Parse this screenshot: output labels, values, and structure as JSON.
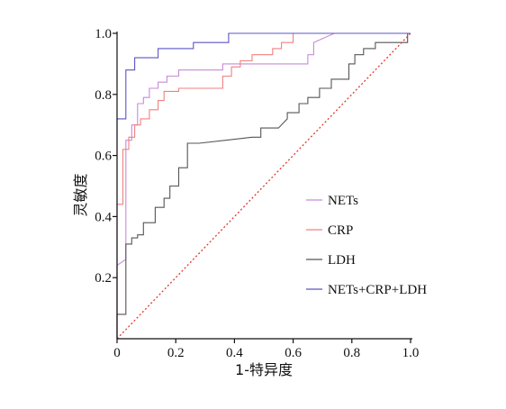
{
  "chart_data": {
    "type": "line",
    "title": "",
    "xlabel": "1-特异度",
    "ylabel": "灵敏度",
    "xlim": [
      0,
      1.0
    ],
    "ylim": [
      0,
      1.0
    ],
    "xticks": [
      "0",
      "0.2",
      "0.4",
      "0.6",
      "0.8",
      "1.0"
    ],
    "yticks": [
      "0.2",
      "0.4",
      "0.6",
      "0.8",
      "1.0"
    ],
    "grid": false,
    "legend": "right",
    "series": [
      {
        "name": "NETs",
        "color": "#c78ad8",
        "x": [
          0,
          0,
          0.03,
          0.03,
          0.05,
          0.05,
          0.07,
          0.07,
          0.09,
          0.09,
          0.11,
          0.11,
          0.14,
          0.14,
          0.17,
          0.17,
          0.21,
          0.21,
          0.36,
          0.36,
          0.65,
          0.65,
          0.67,
          0.67,
          0.74,
          1.0
        ],
        "y": [
          0,
          0.24,
          0.26,
          0.65,
          0.65,
          0.7,
          0.7,
          0.77,
          0.77,
          0.79,
          0.79,
          0.82,
          0.82,
          0.84,
          0.84,
          0.86,
          0.86,
          0.88,
          0.88,
          0.9,
          0.9,
          0.93,
          0.93,
          0.97,
          1.0,
          1.0
        ]
      },
      {
        "name": "CRP",
        "color": "#f08080",
        "x": [
          0,
          0,
          0.02,
          0.02,
          0.04,
          0.04,
          0.06,
          0.06,
          0.08,
          0.08,
          0.11,
          0.11,
          0.14,
          0.14,
          0.16,
          0.16,
          0.21,
          0.21,
          0.36,
          0.36,
          0.39,
          0.39,
          0.42,
          0.42,
          0.46,
          0.46,
          0.53,
          0.53,
          0.56,
          0.56,
          0.6,
          0.6,
          1.0
        ],
        "y": [
          0,
          0.44,
          0.44,
          0.62,
          0.62,
          0.66,
          0.66,
          0.7,
          0.7,
          0.72,
          0.72,
          0.75,
          0.75,
          0.78,
          0.78,
          0.81,
          0.81,
          0.82,
          0.82,
          0.86,
          0.86,
          0.89,
          0.89,
          0.91,
          0.91,
          0.93,
          0.93,
          0.95,
          0.95,
          0.97,
          0.97,
          1.0,
          1.0
        ]
      },
      {
        "name": "LDH",
        "color": "#555555",
        "x": [
          0,
          0,
          0.03,
          0.03,
          0.05,
          0.05,
          0.07,
          0.07,
          0.09,
          0.09,
          0.13,
          0.13,
          0.16,
          0.16,
          0.18,
          0.18,
          0.21,
          0.21,
          0.24,
          0.24,
          0.28,
          0.28,
          0.46,
          0.49,
          0.49,
          0.55,
          0.58,
          0.58,
          0.62,
          0.62,
          0.65,
          0.65,
          0.69,
          0.69,
          0.73,
          0.73,
          0.79,
          0.79,
          0.81,
          0.81,
          0.84,
          0.84,
          0.88,
          0.88,
          0.99,
          0.99,
          1.0
        ],
        "y": [
          0,
          0.08,
          0.08,
          0.31,
          0.31,
          0.33,
          0.33,
          0.34,
          0.34,
          0.38,
          0.38,
          0.43,
          0.43,
          0.46,
          0.46,
          0.5,
          0.5,
          0.56,
          0.56,
          0.64,
          0.64,
          0.64,
          0.66,
          0.66,
          0.69,
          0.69,
          0.72,
          0.74,
          0.74,
          0.77,
          0.77,
          0.79,
          0.79,
          0.82,
          0.82,
          0.85,
          0.85,
          0.9,
          0.9,
          0.93,
          0.93,
          0.95,
          0.95,
          0.97,
          0.97,
          1.0,
          1.0
        ]
      },
      {
        "name": "NETs+CRP+LDH",
        "color": "#5a55c4",
        "x": [
          0,
          0,
          0.03,
          0.03,
          0.06,
          0.06,
          0.14,
          0.14,
          0.26,
          0.26,
          0.38,
          0.38,
          1.0
        ],
        "y": [
          0,
          0.72,
          0.72,
          0.88,
          0.88,
          0.92,
          0.92,
          0.95,
          0.95,
          0.97,
          0.97,
          1.0,
          1.0
        ]
      },
      {
        "name": "",
        "color": "#e03a2a",
        "dashed": true,
        "x": [
          0,
          1.0
        ],
        "y": [
          0,
          1.0
        ]
      }
    ]
  }
}
